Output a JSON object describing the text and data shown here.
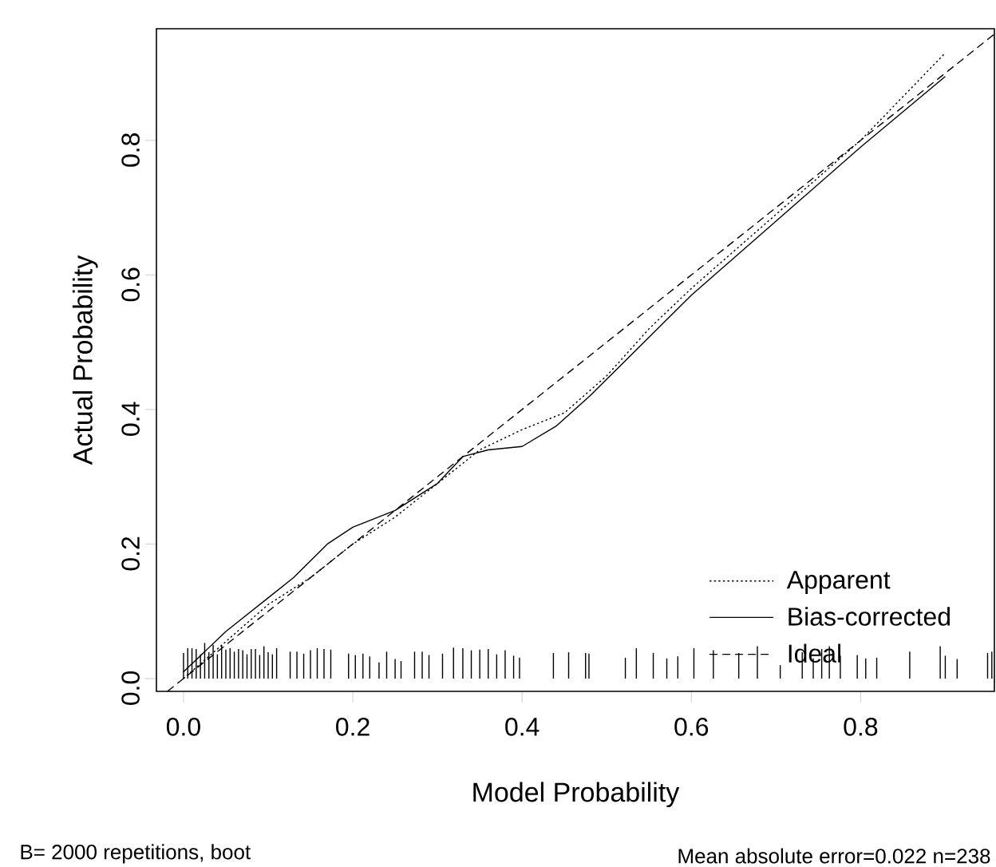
{
  "chart_data": {
    "type": "line",
    "xlabel": "Model Probability",
    "ylabel": "Actual Probability",
    "xlim": [
      -0.032,
      0.958
    ],
    "ylim": [
      -0.019,
      0.966
    ],
    "xticks": [
      {
        "value": 0,
        "label": "0.0"
      },
      0.2,
      0.4,
      0.6,
      0.8
    ],
    "yticks": [
      {
        "value": 0,
        "label": "0.0"
      },
      0.2,
      0.4,
      0.6,
      0.8
    ],
    "grid": false,
    "legend": "bottom right",
    "marker": "none",
    "annotations": [
      "B= 2000 repetitions, boot",
      "Mean absolute error=0.022 n=238"
    ],
    "series": [
      {
        "type": "bar",
        "color": "#000000",
        "x": [
          0.0,
          0.005,
          0.01,
          0.015,
          0.02,
          0.025,
          0.03,
          0.035,
          0.04,
          0.045,
          0.05,
          0.055,
          0.06,
          0.065,
          0.07,
          0.075,
          0.08,
          0.085,
          0.09,
          0.095,
          0.1,
          0.105,
          0.11,
          0.126,
          0.134,
          0.142,
          0.15,
          0.158,
          0.166,
          0.174,
          0.195,
          0.203,
          0.212,
          0.22,
          0.231,
          0.24,
          0.25,
          0.257,
          0.273,
          0.282,
          0.29,
          0.306,
          0.319,
          0.33,
          0.34,
          0.35,
          0.36,
          0.37,
          0.38,
          0.39,
          0.397,
          0.437,
          0.455,
          0.475,
          0.479,
          0.522,
          0.535,
          0.555,
          0.571,
          0.584,
          0.603,
          0.626,
          0.656,
          0.678,
          0.705,
          0.731,
          0.744,
          0.754,
          0.763,
          0.776,
          0.796,
          0.806,
          0.819,
          0.858,
          0.894,
          0.9,
          0.914,
          0.95,
          0.955
        ],
        "values": [
          0.038,
          0.045,
          0.045,
          0.044,
          0.036,
          0.053,
          0.039,
          0.05,
          0.036,
          0.049,
          0.043,
          0.045,
          0.04,
          0.044,
          0.042,
          0.036,
          0.044,
          0.044,
          0.035,
          0.048,
          0.039,
          0.036,
          0.045,
          0.04,
          0.04,
          0.037,
          0.042,
          0.045,
          0.044,
          0.043,
          0.037,
          0.035,
          0.037,
          0.033,
          0.024,
          0.04,
          0.029,
          0.026,
          0.04,
          0.04,
          0.035,
          0.037,
          0.046,
          0.045,
          0.042,
          0.043,
          0.044,
          0.036,
          0.042,
          0.034,
          0.031,
          0.038,
          0.039,
          0.038,
          0.037,
          0.031,
          0.045,
          0.038,
          0.03,
          0.033,
          0.045,
          0.042,
          0.038,
          0.048,
          0.02,
          0.039,
          0.03,
          0.044,
          0.048,
          0.034,
          0.035,
          0.03,
          0.031,
          0.04,
          0.048,
          0.034,
          0.029,
          0.038,
          0.04
        ]
      },
      {
        "name": "Apparent",
        "color": "#000000",
        "line_style": "dotted",
        "x": [
          0.0,
          0.05,
          0.1,
          0.15,
          0.2,
          0.25,
          0.3,
          0.35,
          0.4,
          0.45,
          0.5,
          0.55,
          0.6,
          0.7,
          0.8,
          0.9
        ],
        "values": [
          0.0,
          0.055,
          0.11,
          0.15,
          0.2,
          0.24,
          0.29,
          0.34,
          0.37,
          0.395,
          0.45,
          0.52,
          0.58,
          0.69,
          0.8,
          0.93
        ]
      },
      {
        "name": "Bias-corrected",
        "color": "#000000",
        "line_style": "solid",
        "x": [
          0.0,
          0.05,
          0.1,
          0.13,
          0.17,
          0.2,
          0.25,
          0.3,
          0.33,
          0.36,
          0.4,
          0.44,
          0.48,
          0.52,
          0.56,
          0.6,
          0.7,
          0.8,
          0.9
        ],
        "values": [
          0.01,
          0.07,
          0.12,
          0.15,
          0.2,
          0.225,
          0.25,
          0.29,
          0.33,
          0.34,
          0.345,
          0.375,
          0.42,
          0.47,
          0.52,
          0.57,
          0.68,
          0.79,
          0.895
        ]
      },
      {
        "name": "Ideal",
        "color": "#000000",
        "line_style": "dashed",
        "x": [
          -0.019,
          0.958
        ],
        "values": [
          -0.019,
          0.958
        ]
      }
    ]
  }
}
